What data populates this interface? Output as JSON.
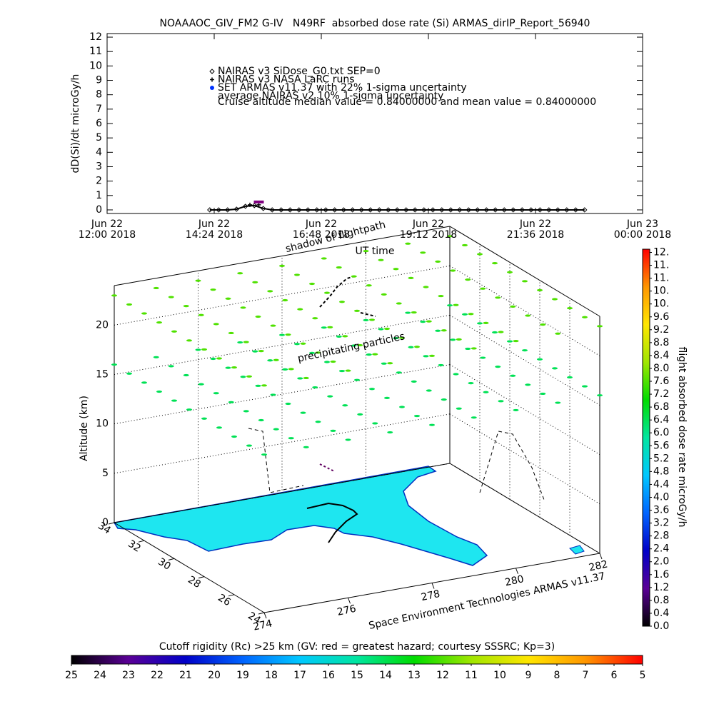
{
  "chart_data": [
    {
      "type": "line",
      "title": "NOAAAOC_GIV_FM2 G-IV   N49RF  absorbed dose rate (Si) ARMAS_dirIP_Report_56940",
      "ylabel": "dD(Si)/dt microGy/h",
      "xlabel": "UT time",
      "xlim": [
        12,
        24
      ],
      "xticks": [
        {
          "value": 12,
          "label": "Jun 22\n12:00 2018"
        },
        {
          "value": 14.4,
          "label": "Jun 22\n14:24 2018"
        },
        {
          "value": 16.8,
          "label": "Jun 22\n16:48 2018"
        },
        {
          "value": 19.2,
          "label": "Jun 22\n19:12 2018"
        },
        {
          "value": 21.6,
          "label": "Jun 22\n21:36 2018"
        },
        {
          "value": 24,
          "label": "Jun 23\n00:00 2018"
        }
      ],
      "ylim": [
        -0.25,
        12.25
      ],
      "yticks": [
        0,
        1,
        2,
        3,
        4,
        5,
        6,
        7,
        8,
        9,
        10,
        11,
        12
      ],
      "series": [
        {
          "name": "NAIRAS v3 SiDose_G0.txt SEP=0",
          "marker": "diamond",
          "color": "#000000",
          "x": [
            14.3,
            14.5,
            14.7,
            14.9,
            15.1,
            15.3,
            15.5,
            15.7,
            15.9,
            16.1,
            16.3,
            16.5,
            16.7,
            16.9,
            17.1,
            17.3,
            17.5,
            17.7,
            17.9,
            18.1,
            18.3,
            18.5,
            18.7,
            18.9,
            19.1,
            19.3,
            19.5,
            19.7,
            19.9,
            20.1,
            20.3,
            20.5,
            20.7,
            20.9,
            21.1,
            21.3,
            21.5,
            21.7,
            21.9,
            22.1,
            22.3,
            22.5,
            22.7
          ],
          "values": [
            0,
            0,
            0,
            0.05,
            0.25,
            0.3,
            0.1,
            0,
            0,
            0,
            0,
            0,
            0,
            0,
            0,
            0,
            0,
            0,
            0,
            0,
            0,
            0,
            0,
            0,
            0,
            0,
            0,
            0,
            0,
            0,
            0,
            0,
            0,
            0,
            0,
            0,
            0,
            0,
            0,
            0,
            0,
            0,
            0
          ]
        },
        {
          "name": "NAIRAS v3 NASA LaRC runs",
          "marker": "plus",
          "color": "#000000",
          "x": [
            15.2,
            15.4
          ],
          "values": [
            0.35,
            0.35
          ]
        },
        {
          "name": "SET ARMAS v11.37 with 22% 1-sigma uncertainty",
          "marker": "dot",
          "color": "#0033ff",
          "x": [],
          "values": []
        },
        {
          "name": "average NAIRAS v2 10% 1-sigma uncertainty",
          "marker": "bar",
          "color": "#7f007f",
          "x": [
            15.4
          ],
          "values": [
            0.55
          ]
        }
      ],
      "annotation": "Cruise altitude median value = 0.84000000 and mean value = 0.84000000"
    },
    {
      "type": "scatter3d",
      "zlabel": "Altitude (km)",
      "xlim": [
        274,
        282
      ],
      "xticks": [
        274,
        276,
        278,
        280,
        282
      ],
      "ylim": [
        24,
        34
      ],
      "yticks": [
        24,
        26,
        28,
        30,
        32,
        34
      ],
      "zlim": [
        0,
        24
      ],
      "zticks": [
        0,
        5,
        10,
        15,
        20
      ],
      "annotations": [
        "shadow of flightpath",
        "precipitating particles",
        "Space Environment Technologies ARMAS v11.37"
      ],
      "layers": [
        {
          "altitude": 23,
          "value": 7.6
        },
        {
          "altitude": 16,
          "value": 6.4
        }
      ]
    },
    {
      "type": "colorbar",
      "orientation": "vertical",
      "label": "flight absorbed dose rate microGy/h",
      "ylim": [
        0,
        11.7
      ],
      "yticks": [
        {
          "value": 0.0,
          "label": "0.0"
        },
        0.4,
        0.8,
        1.2,
        1.6,
        {
          "value": 2.0,
          "label": "2.0"
        },
        2.4,
        2.8,
        3.2,
        3.6,
        {
          "value": 4.0,
          "label": "4.0"
        },
        4.4,
        4.8,
        5.2,
        5.6,
        {
          "value": 6.0,
          "label": "6.0"
        },
        6.4,
        6.8,
        7.2,
        7.6,
        {
          "value": 8.0,
          "label": "8.0"
        },
        8.4,
        8.8,
        9.2,
        9.6,
        {
          "value": 10.0,
          "label": "10."
        },
        {
          "value": 10.4,
          "label": "10."
        },
        {
          "value": 10.8,
          "label": "11."
        },
        {
          "value": 11.2,
          "label": "11."
        },
        {
          "value": 11.6,
          "label": "12."
        }
      ],
      "colormap": [
        "#000000",
        "#5a0096",
        "#0000c8",
        "#0064ff",
        "#00c8ff",
        "#00e6a0",
        "#00dc00",
        "#a0e600",
        "#ffe600",
        "#ff9600",
        "#ff0000"
      ]
    },
    {
      "type": "colorbar",
      "orientation": "horizontal",
      "title": "Cutoff rigidity (Rc) >25 km (GV: red = greatest hazard; courtesy SSSRC; Kp=3)",
      "xlim": [
        25,
        5
      ],
      "xticks": [
        25,
        24,
        23,
        22,
        21,
        20,
        19,
        18,
        17,
        16,
        15,
        14,
        13,
        12,
        11,
        10,
        9,
        8,
        7,
        6,
        5
      ],
      "colormap": [
        "#000000",
        "#5a0096",
        "#0000c8",
        "#0064ff",
        "#00c8ff",
        "#00e6a0",
        "#00dc00",
        "#a0e600",
        "#ffe600",
        "#ff9600",
        "#ff0000"
      ]
    }
  ]
}
